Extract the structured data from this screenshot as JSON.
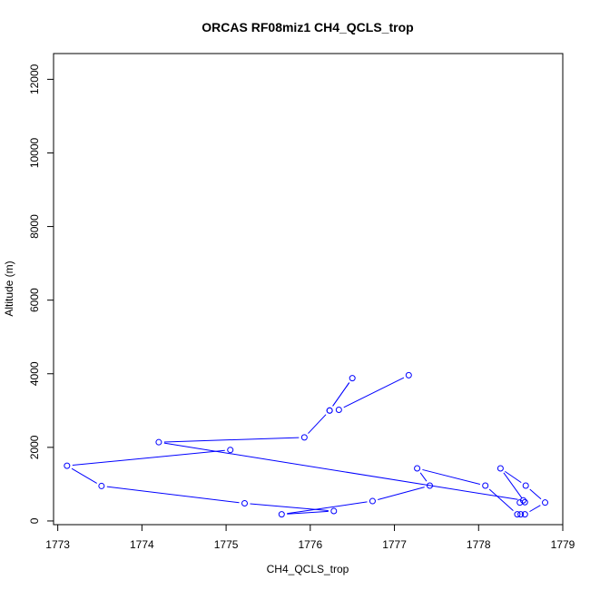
{
  "chart_data": {
    "type": "line",
    "title": "ORCAS RF08miz1 CH4_QCLS_trop",
    "xlabel": "CH4_QCLS_trop",
    "ylabel": "Altitude (m)",
    "xlim": [
      1772.95,
      1779.0
    ],
    "ylim": [
      -100,
      12700
    ],
    "xticks": [
      1773,
      1774,
      1775,
      1776,
      1777,
      1778,
      1779
    ],
    "yticks": [
      0,
      2000,
      4000,
      6000,
      8000,
      10000,
      12000
    ],
    "grid": false,
    "legend": "none",
    "series": [
      {
        "color": "#0000ff",
        "marker": "open-circle",
        "x": [
          1777.17,
          1776.34,
          1776.23,
          1776.5,
          1776.23,
          1775.93,
          1774.2,
          1778.53,
          1778.49,
          1778.55,
          1778.26,
          1778.56,
          1778.79,
          1778.55,
          1778.5,
          1778.46,
          1778.08,
          1777.27,
          1777.42,
          1776.74,
          1775.66,
          1776.28,
          1775.22,
          1773.52,
          1773.11,
          1775.05
        ],
        "y": [
          3960,
          3020,
          3000,
          3880,
          3000,
          2270,
          2140,
          560,
          500,
          510,
          1430,
          960,
          500,
          180,
          180,
          180,
          960,
          1430,
          960,
          540,
          180,
          270,
          480,
          950,
          1500,
          1930
        ]
      }
    ]
  }
}
